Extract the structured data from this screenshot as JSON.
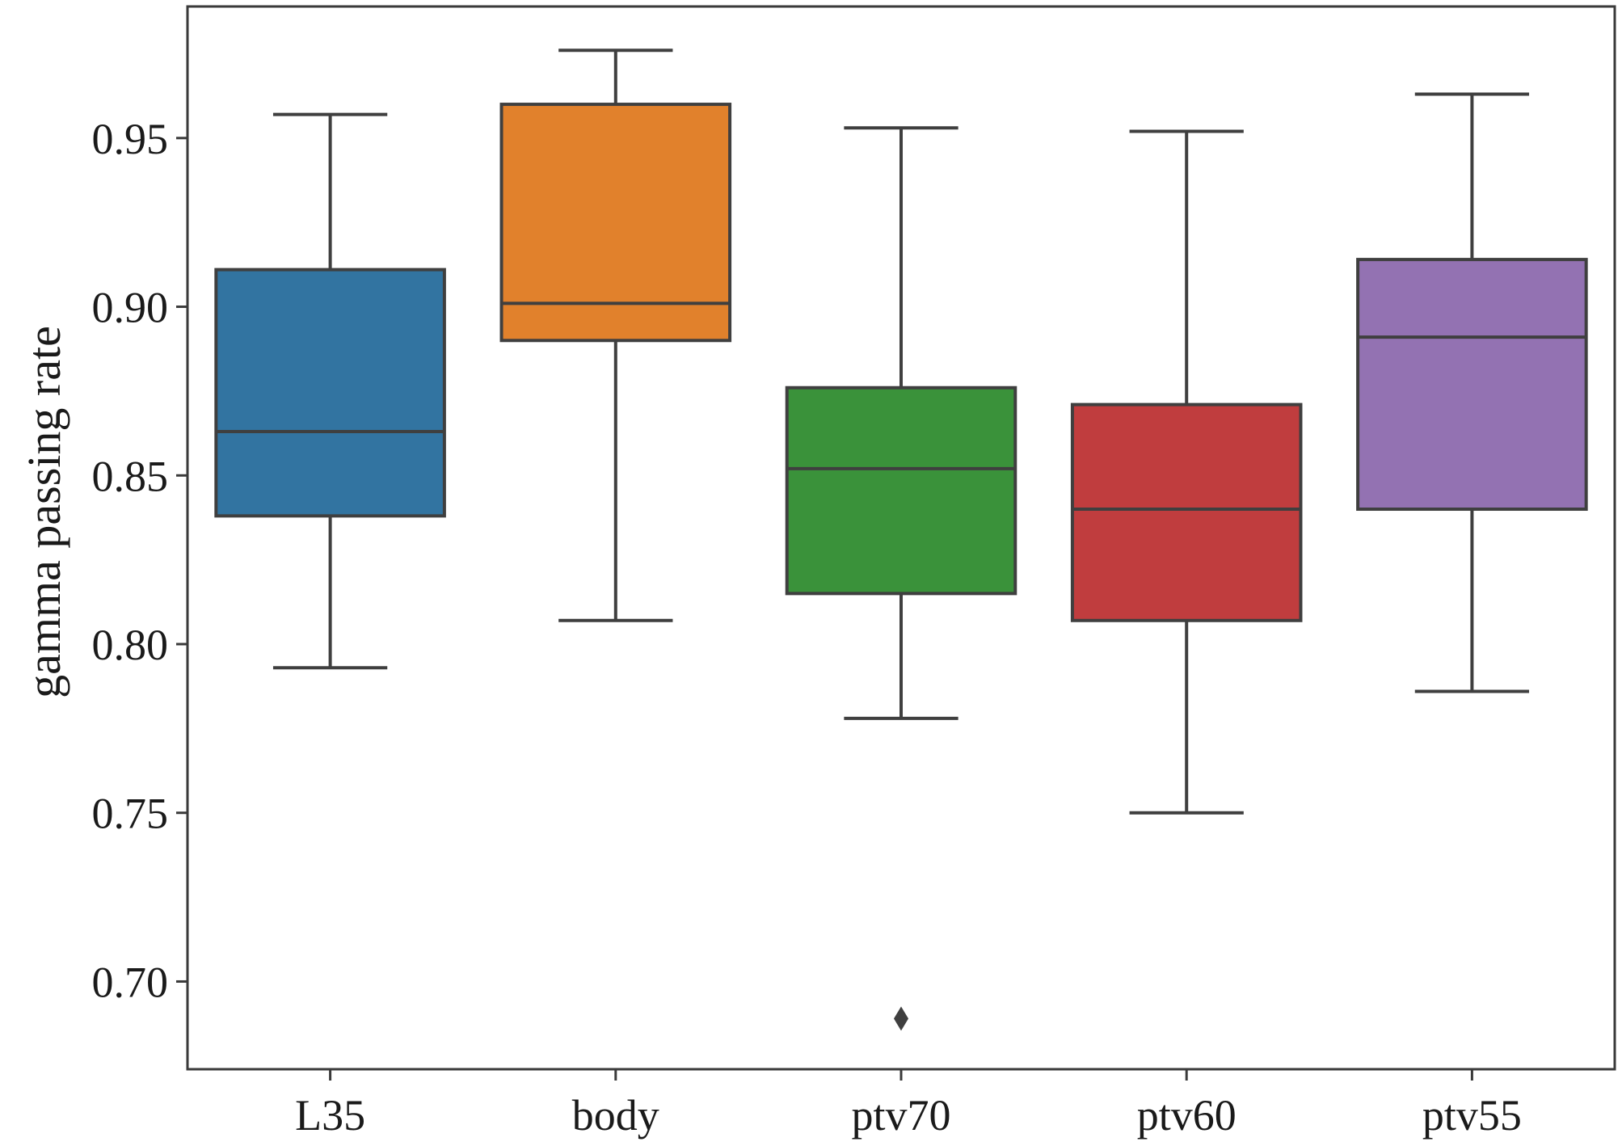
{
  "chart_data": {
    "type": "box",
    "title": "",
    "xlabel": "",
    "ylabel": "gamma passing rate",
    "ylim": [
      0.674,
      0.989
    ],
    "yticks": [
      0.7,
      0.75,
      0.8,
      0.85,
      0.9,
      0.95
    ],
    "ytick_labels": [
      "0.70",
      "0.75",
      "0.80",
      "0.85",
      "0.90",
      "0.95"
    ],
    "grid": false,
    "categories": [
      "L35",
      "body",
      "ptv70",
      "ptv60",
      "ptv55"
    ],
    "colors": [
      "#3274a1",
      "#e1812c",
      "#3a923a",
      "#c03d3e",
      "#9372b2"
    ],
    "edge_color": "#3f3f3f",
    "boxes": [
      {
        "whisker_low": 0.793,
        "q1": 0.838,
        "median": 0.863,
        "q3": 0.911,
        "whisker_high": 0.957,
        "outliers": []
      },
      {
        "whisker_low": 0.807,
        "q1": 0.89,
        "median": 0.901,
        "q3": 0.96,
        "whisker_high": 0.976,
        "outliers": []
      },
      {
        "whisker_low": 0.778,
        "q1": 0.815,
        "median": 0.852,
        "q3": 0.876,
        "whisker_high": 0.953,
        "outliers": [
          0.689
        ]
      },
      {
        "whisker_low": 0.75,
        "q1": 0.807,
        "median": 0.84,
        "q3": 0.871,
        "whisker_high": 0.952,
        "outliers": []
      },
      {
        "whisker_low": 0.786,
        "q1": 0.84,
        "median": 0.891,
        "q3": 0.914,
        "whisker_high": 0.963,
        "outliers": []
      }
    ]
  }
}
